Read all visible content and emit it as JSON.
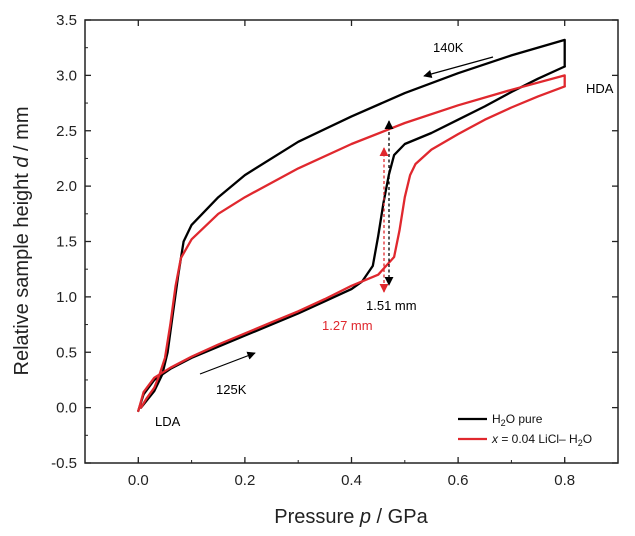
{
  "chart_data": {
    "type": "line",
    "xlabel_prefix": "Pressure ",
    "xlabel_var": "p",
    "xlabel_suffix": " / GPa",
    "ylabel_prefix": "Relative sample height ",
    "ylabel_var": "d",
    "ylabel_suffix": " / mm",
    "xlim": [
      -0.1,
      0.9
    ],
    "ylim": [
      -0.5,
      3.5
    ],
    "xticks": [
      0.0,
      0.2,
      0.4,
      0.6,
      0.8
    ],
    "xtick_labels": [
      "0.0",
      "0.2",
      "0.4",
      "0.6",
      "0.8"
    ],
    "yticks": [
      -0.5,
      0.0,
      0.5,
      1.0,
      1.5,
      2.0,
      2.5,
      3.0,
      3.5
    ],
    "ytick_labels": [
      "-0.5",
      "0.0",
      "0.5",
      "1.0",
      "1.5",
      "2.0",
      "2.5",
      "3.0",
      "3.5"
    ],
    "grid": false,
    "legend_position": "bottom-right",
    "series": [
      {
        "name": "H2O pure",
        "color": "#000000",
        "compression": {
          "x": [
            0.0,
            0.01,
            0.03,
            0.06,
            0.1,
            0.15,
            0.2,
            0.25,
            0.3,
            0.35,
            0.4,
            0.42,
            0.44,
            0.45,
            0.46,
            0.47,
            0.48,
            0.5,
            0.55,
            0.6,
            0.65,
            0.7,
            0.75,
            0.8
          ],
          "y": [
            -0.03,
            0.12,
            0.25,
            0.35,
            0.45,
            0.55,
            0.65,
            0.75,
            0.85,
            0.96,
            1.07,
            1.14,
            1.28,
            1.55,
            1.85,
            2.1,
            2.28,
            2.38,
            2.48,
            2.6,
            2.72,
            2.85,
            2.97,
            3.08
          ]
        },
        "decompression": {
          "x": [
            0.8,
            0.8,
            0.7,
            0.6,
            0.5,
            0.4,
            0.3,
            0.2,
            0.15,
            0.1,
            0.085,
            0.075,
            0.065,
            0.055,
            0.045,
            0.03,
            0.015,
            0.005
          ],
          "y": [
            3.08,
            3.32,
            3.18,
            3.02,
            2.84,
            2.63,
            2.4,
            2.1,
            1.9,
            1.65,
            1.5,
            1.2,
            0.85,
            0.5,
            0.3,
            0.15,
            0.06,
            0.0
          ]
        }
      },
      {
        "name": "x = 0.04 LiCl– H2O",
        "color": "#e0282e",
        "compression": {
          "x": [
            0.0,
            0.01,
            0.03,
            0.06,
            0.1,
            0.15,
            0.2,
            0.25,
            0.3,
            0.35,
            0.4,
            0.45,
            0.48,
            0.49,
            0.5,
            0.51,
            0.52,
            0.55,
            0.6,
            0.65,
            0.7,
            0.75,
            0.8
          ],
          "y": [
            -0.03,
            0.14,
            0.27,
            0.36,
            0.46,
            0.57,
            0.67,
            0.77,
            0.87,
            0.98,
            1.1,
            1.2,
            1.36,
            1.6,
            1.9,
            2.1,
            2.2,
            2.33,
            2.47,
            2.6,
            2.71,
            2.81,
            2.9
          ]
        },
        "decompression": {
          "x": [
            0.8,
            0.8,
            0.7,
            0.6,
            0.5,
            0.4,
            0.3,
            0.2,
            0.15,
            0.1,
            0.08,
            0.07,
            0.06,
            0.05,
            0.04,
            0.03,
            0.015,
            0.005
          ],
          "y": [
            2.9,
            3.0,
            2.87,
            2.73,
            2.57,
            2.38,
            2.16,
            1.9,
            1.75,
            1.52,
            1.35,
            1.1,
            0.75,
            0.45,
            0.3,
            0.18,
            0.08,
            0.0
          ]
        }
      }
    ]
  },
  "annotations": {
    "t140": "140K",
    "t125": "125K",
    "hda": "HDA",
    "lda": "LDA",
    "black_gap": "1.51 mm",
    "red_gap": "1.27 mm"
  },
  "legend": {
    "pure_a": "H",
    "pure_sub": "2",
    "pure_b": "O pure",
    "licl_var": "x",
    "licl_a": " = 0.04 LiCl– H",
    "licl_sub": "2",
    "licl_b": "O"
  },
  "colors": {
    "black": "#000000",
    "red": "#e0282e",
    "axis": "#222222"
  }
}
